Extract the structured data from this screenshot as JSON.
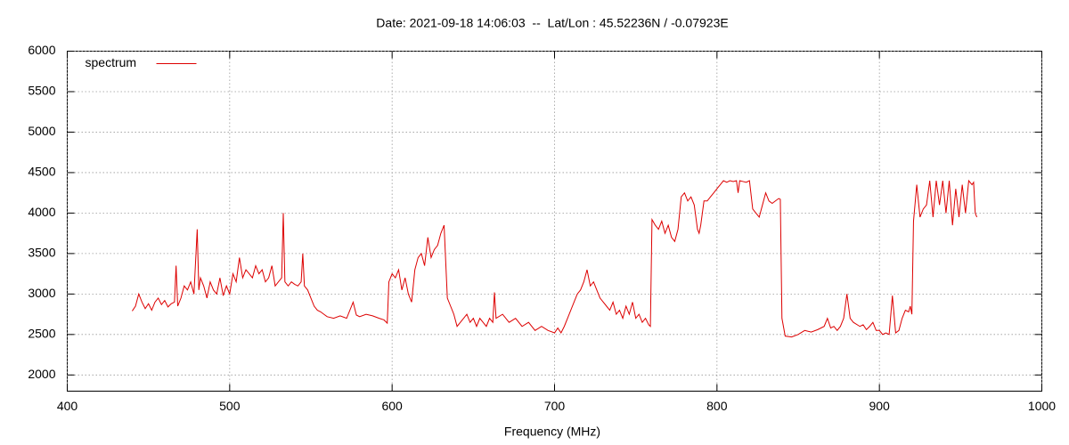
{
  "chart_data": {
    "type": "line",
    "title": "Date: 2021-09-18 14:06:03  --  Lat/Lon : 45.52236N / -0.07923E",
    "x_label": "Frequency (MHz)",
    "xlim": [
      400,
      1000
    ],
    "xticks": [
      400,
      500,
      600,
      700,
      800,
      900,
      1000
    ],
    "ylim": [
      1800,
      6000
    ],
    "yticks": [
      2000,
      2500,
      3000,
      3500,
      4000,
      4500,
      5000,
      5500,
      6000
    ],
    "grid": true,
    "legend": "top left",
    "x": [
      440,
      442,
      444,
      446,
      448,
      450,
      452,
      454,
      456,
      458,
      460,
      462,
      464,
      466,
      467,
      468,
      470,
      472,
      474,
      476,
      478,
      480,
      481,
      482,
      484,
      486,
      488,
      490,
      492,
      494,
      496,
      498,
      500,
      502,
      504,
      506,
      508,
      510,
      512,
      514,
      516,
      518,
      520,
      522,
      524,
      526,
      528,
      530,
      532,
      533,
      534,
      536,
      538,
      540,
      542,
      544,
      545,
      546,
      548,
      550,
      552,
      554,
      556,
      558,
      560,
      564,
      568,
      572,
      576,
      578,
      580,
      584,
      588,
      592,
      595,
      597,
      598,
      600,
      602,
      604,
      606,
      608,
      610,
      612,
      614,
      616,
      618,
      620,
      622,
      624,
      626,
      628,
      630,
      632,
      634,
      636,
      638,
      640,
      642,
      644,
      646,
      648,
      650,
      652,
      654,
      656,
      658,
      660,
      662,
      663,
      664,
      668,
      672,
      676,
      680,
      684,
      688,
      692,
      696,
      700,
      702,
      704,
      706,
      708,
      710,
      712,
      714,
      716,
      718,
      720,
      722,
      724,
      726,
      728,
      730,
      732,
      734,
      736,
      738,
      740,
      742,
      744,
      746,
      748,
      750,
      752,
      754,
      756,
      758,
      759,
      760,
      762,
      764,
      766,
      768,
      770,
      772,
      774,
      776,
      778,
      780,
      782,
      784,
      786,
      788,
      789,
      790,
      792,
      794,
      796,
      798,
      800,
      802,
      804,
      806,
      808,
      810,
      812,
      813,
      814,
      816,
      818,
      820,
      822,
      824,
      826,
      828,
      830,
      832,
      834,
      836,
      838,
      839,
      840,
      842,
      846,
      850,
      854,
      858,
      862,
      866,
      868,
      870,
      872,
      874,
      876,
      878,
      880,
      882,
      884,
      888,
      890,
      892,
      894,
      896,
      898,
      900,
      902,
      904,
      906,
      908,
      910,
      912,
      914,
      916,
      918,
      919,
      920,
      921,
      923,
      925,
      927,
      929,
      931,
      933,
      935,
      937,
      939,
      941,
      943,
      945,
      947,
      949,
      951,
      953,
      955,
      957,
      958,
      959,
      960
    ],
    "series": [
      {
        "name": "spectrum",
        "color": "#dd0000",
        "values": [
          2790,
          2850,
          3000,
          2900,
          2820,
          2880,
          2800,
          2900,
          2950,
          2870,
          2920,
          2840,
          2880,
          2900,
          3350,
          2850,
          2950,
          3100,
          3050,
          3150,
          3000,
          3800,
          3050,
          3200,
          3100,
          2950,
          3150,
          3050,
          3000,
          3200,
          2980,
          3100,
          3000,
          3250,
          3150,
          3450,
          3200,
          3300,
          3250,
          3200,
          3350,
          3250,
          3300,
          3150,
          3200,
          3350,
          3100,
          3150,
          3200,
          4000,
          3150,
          3100,
          3150,
          3120,
          3100,
          3150,
          3500,
          3100,
          3050,
          2950,
          2850,
          2800,
          2780,
          2750,
          2720,
          2700,
          2730,
          2700,
          2900,
          2740,
          2720,
          2750,
          2730,
          2700,
          2680,
          2640,
          3150,
          3250,
          3200,
          3300,
          3050,
          3200,
          3000,
          2900,
          3300,
          3450,
          3500,
          3350,
          3700,
          3450,
          3550,
          3600,
          3750,
          3850,
          2950,
          2850,
          2750,
          2600,
          2650,
          2700,
          2750,
          2650,
          2700,
          2600,
          2700,
          2650,
          2600,
          2700,
          2650,
          3020,
          2700,
          2750,
          2650,
          2700,
          2600,
          2650,
          2550,
          2600,
          2550,
          2520,
          2580,
          2520,
          2600,
          2700,
          2800,
          2900,
          3000,
          3050,
          3150,
          3300,
          3100,
          3150,
          3050,
          2950,
          2900,
          2850,
          2800,
          2900,
          2750,
          2800,
          2700,
          2850,
          2750,
          2900,
          2700,
          2750,
          2650,
          2700,
          2620,
          2600,
          3920,
          3850,
          3800,
          3900,
          3750,
          3850,
          3700,
          3650,
          3800,
          4200,
          4250,
          4150,
          4200,
          4100,
          3800,
          3750,
          3850,
          4150,
          4150,
          4200,
          4250,
          4300,
          4350,
          4400,
          4380,
          4400,
          4390,
          4400,
          4250,
          4400,
          4390,
          4380,
          4400,
          4050,
          4000,
          3950,
          4100,
          4250,
          4150,
          4120,
          4150,
          4180,
          4170,
          2700,
          2480,
          2470,
          2500,
          2550,
          2530,
          2560,
          2600,
          2700,
          2580,
          2600,
          2550,
          2600,
          2700,
          3000,
          2700,
          2650,
          2600,
          2620,
          2560,
          2600,
          2650,
          2550,
          2550,
          2500,
          2520,
          2500,
          2980,
          2520,
          2550,
          2700,
          2800,
          2780,
          2850,
          2750,
          3900,
          4350,
          3950,
          4050,
          4100,
          4400,
          3950,
          4400,
          4100,
          4400,
          4000,
          4400,
          3850,
          4300,
          3950,
          4350,
          4000,
          4400,
          4350,
          4380,
          4000,
          3950
        ]
      }
    ]
  }
}
